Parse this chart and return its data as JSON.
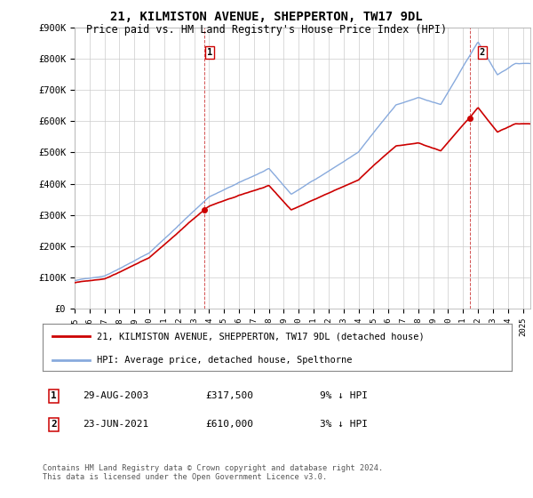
{
  "title": "21, KILMISTON AVENUE, SHEPPERTON, TW17 9DL",
  "subtitle": "Price paid vs. HM Land Registry's House Price Index (HPI)",
  "ylabel_ticks": [
    "£0",
    "£100K",
    "£200K",
    "£300K",
    "£400K",
    "£500K",
    "£600K",
    "£700K",
    "£800K",
    "£900K"
  ],
  "ytick_values": [
    0,
    100000,
    200000,
    300000,
    400000,
    500000,
    600000,
    700000,
    800000,
    900000
  ],
  "ylim": [
    0,
    900000
  ],
  "hpi_color": "#88aadd",
  "price_color": "#cc0000",
  "sale1_date_x": 2003.66,
  "sale1_price": 317500,
  "sale1_label": "1",
  "sale2_date_x": 2021.47,
  "sale2_price": 610000,
  "sale2_label": "2",
  "legend_line1": "21, KILMISTON AVENUE, SHEPPERTON, TW17 9DL (detached house)",
  "legend_line2": "HPI: Average price, detached house, Spelthorne",
  "table_row1_num": "1",
  "table_row1_date": "29-AUG-2003",
  "table_row1_price": "£317,500",
  "table_row1_hpi": "9% ↓ HPI",
  "table_row2_num": "2",
  "table_row2_date": "23-JUN-2021",
  "table_row2_price": "£610,000",
  "table_row2_hpi": "3% ↓ HPI",
  "footer": "Contains HM Land Registry data © Crown copyright and database right 2024.\nThis data is licensed under the Open Government Licence v3.0.",
  "background_color": "#ffffff",
  "grid_color": "#cccccc",
  "xmin": 1995,
  "xmax": 2025.5
}
